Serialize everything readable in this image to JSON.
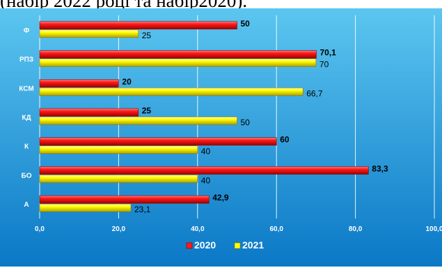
{
  "caption": "(набір 2022 році та набір2020).",
  "chart_data": {
    "type": "bar",
    "orientation": "horizontal",
    "categories": [
      "Ф",
      "РПЗ",
      "КСМ",
      "КД",
      "К",
      "БО",
      "А"
    ],
    "series": [
      {
        "name": "2020",
        "values": [
          50,
          70.1,
          20,
          25,
          60,
          83.3,
          42.9
        ],
        "labels": [
          "50",
          "70,1",
          "20",
          "25",
          "60",
          "83,3",
          "42,9"
        ]
      },
      {
        "name": "2021",
        "values": [
          25,
          70,
          66.7,
          50,
          40,
          40,
          23.1
        ],
        "labels": [
          "25",
          "70",
          "66,7",
          "50",
          "40",
          "40",
          "23,1"
        ]
      }
    ],
    "xlim": [
      0,
      100
    ],
    "xticks": [
      "0,0",
      "20,0",
      "40,0",
      "60,0",
      "80,0",
      "100,0"
    ],
    "grid": true,
    "legend": "bottom"
  },
  "colors": {
    "background_top": "#5cc6f0",
    "background_bottom": "#0a78c6",
    "series_2020": "#ff1a1a",
    "series_2021": "#ffff00",
    "grid": "#ffffff"
  }
}
